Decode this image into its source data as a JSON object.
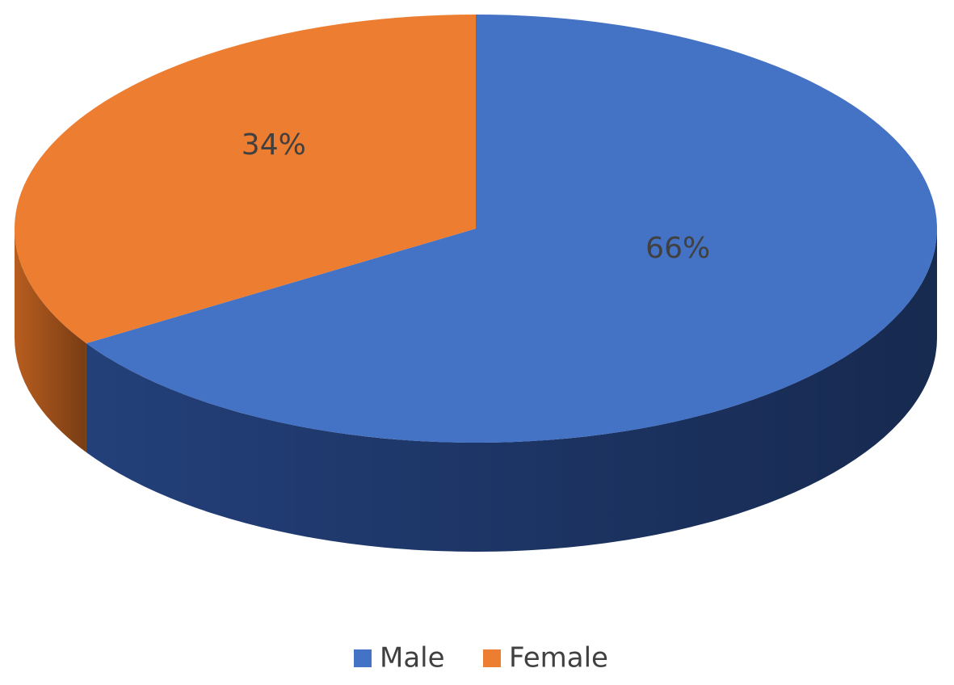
{
  "chart_data": {
    "type": "pie",
    "categories": [
      "Male",
      "Female"
    ],
    "values": [
      66,
      34
    ],
    "value_labels": [
      "66%",
      "34%"
    ],
    "colors": [
      "#4472c4",
      "#ed7d31"
    ],
    "side_colors": [
      "#23407a",
      "#b85d1f"
    ],
    "legend": "bottom"
  }
}
